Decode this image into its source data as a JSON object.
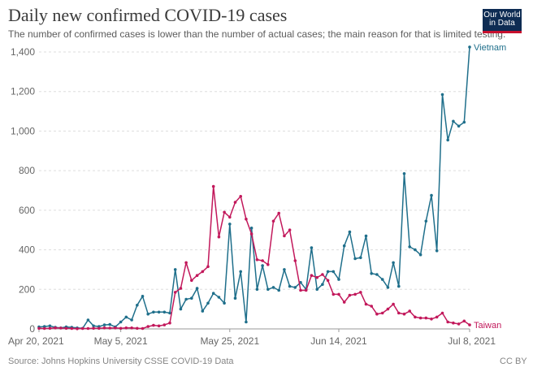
{
  "title": "Daily new confirmed COVID-19 cases",
  "subtitle": "The number of confirmed cases is lower than the number of actual cases; the main reason for that is limited testing.",
  "source": "Source: Johns Hopkins University CSSE COVID-19 Data",
  "license": "CC BY",
  "logo_text": "Our World\nin Data",
  "colors": {
    "Vietnam": "#1f6f8b",
    "Taiwan": "#c2185b",
    "grid": "#dddddd",
    "axis": "#999999"
  },
  "chart_data": {
    "type": "line",
    "title": "Daily new confirmed COVID-19 cases",
    "xlabel": "",
    "ylabel": "",
    "ylim": [
      0,
      1400
    ],
    "yticks": [
      0,
      200,
      400,
      600,
      800,
      1000,
      1200,
      1400
    ],
    "ytick_labels": [
      "0",
      "200",
      "400",
      "600",
      "800",
      "1,000",
      "1,200",
      "1,400"
    ],
    "xticks": [
      0,
      15,
      35,
      55,
      79
    ],
    "xtick_labels": [
      "Apr 20, 2021",
      "May 5, 2021",
      "May 25, 2021",
      "Jun 14, 2021",
      "Jul 8, 2021"
    ],
    "x_days_span": 79,
    "series": [
      {
        "name": "Vietnam",
        "x": [
          0,
          1,
          2,
          3,
          4,
          5,
          6,
          7,
          8,
          9,
          10,
          11,
          12,
          13,
          14,
          15,
          16,
          17,
          18,
          19,
          20,
          21,
          22,
          23,
          24,
          25,
          26,
          27,
          28,
          29,
          30,
          31,
          32,
          33,
          34,
          35,
          36,
          37,
          38,
          39,
          40,
          41,
          42,
          43,
          44,
          45,
          46,
          47,
          48,
          49,
          50,
          51,
          52,
          53,
          54,
          55,
          56,
          57,
          58,
          59,
          60,
          61,
          62,
          63,
          64,
          65,
          66,
          67,
          68,
          69,
          70,
          71,
          72,
          73,
          74,
          75,
          76,
          77,
          78,
          79
        ],
        "values": [
          10,
          12,
          15,
          8,
          5,
          10,
          8,
          5,
          3,
          45,
          15,
          12,
          20,
          22,
          10,
          35,
          60,
          45,
          120,
          165,
          75,
          85,
          85,
          85,
          80,
          300,
          100,
          150,
          155,
          205,
          90,
          130,
          180,
          160,
          130,
          530,
          155,
          290,
          35,
          510,
          200,
          320,
          200,
          210,
          195,
          300,
          215,
          210,
          235,
          200,
          410,
          200,
          225,
          290,
          290,
          250,
          420,
          490,
          355,
          360,
          470,
          280,
          275,
          250,
          210,
          335,
          215,
          785,
          415,
          400,
          375,
          545,
          675,
          395,
          1185,
          955,
          1050,
          1025,
          1045,
          1425
        ]
      },
      {
        "name": "Taiwan",
        "x": [
          0,
          1,
          2,
          3,
          4,
          5,
          6,
          7,
          8,
          9,
          10,
          11,
          12,
          13,
          14,
          15,
          16,
          17,
          18,
          19,
          20,
          21,
          22,
          23,
          24,
          25,
          26,
          27,
          28,
          29,
          30,
          31,
          32,
          33,
          34,
          35,
          36,
          37,
          38,
          39,
          40,
          41,
          42,
          43,
          44,
          45,
          46,
          47,
          48,
          49,
          50,
          51,
          52,
          53,
          54,
          55,
          56,
          57,
          58,
          59,
          60,
          61,
          62,
          63,
          64,
          65,
          66,
          67,
          68,
          69,
          70,
          71,
          72,
          73,
          74,
          75,
          76,
          77,
          78,
          79
        ],
        "values": [
          3,
          2,
          3,
          5,
          4,
          3,
          2,
          1,
          2,
          2,
          3,
          3,
          5,
          4,
          5,
          3,
          5,
          5,
          3,
          2,
          12,
          18,
          15,
          20,
          30,
          185,
          205,
          335,
          245,
          270,
          290,
          315,
          720,
          465,
          590,
          565,
          640,
          670,
          555,
          480,
          350,
          345,
          325,
          545,
          585,
          470,
          500,
          345,
          195,
          195,
          270,
          260,
          275,
          245,
          175,
          175,
          135,
          170,
          175,
          185,
          125,
          115,
          75,
          80,
          100,
          125,
          80,
          75,
          90,
          60,
          55,
          55,
          50,
          60,
          80,
          35,
          30,
          25,
          40,
          20
        ]
      }
    ]
  }
}
